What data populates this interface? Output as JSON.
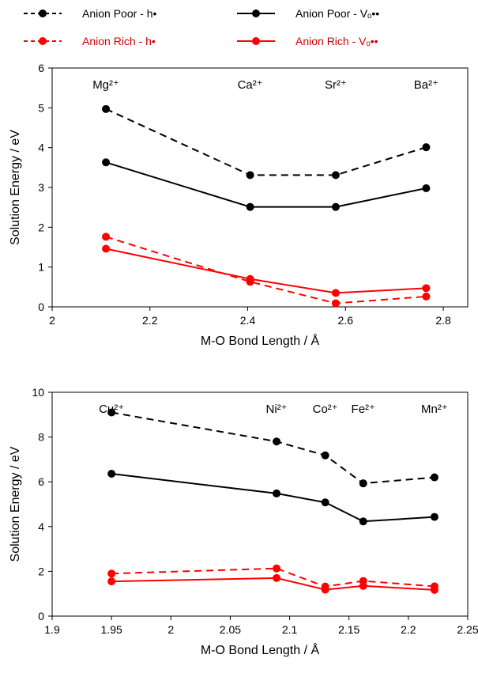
{
  "legend": {
    "items": [
      {
        "label": "Anion Poor - h•",
        "color": "#000000",
        "dashed": true
      },
      {
        "label": "Anion Poor - Vₒ••",
        "color": "#000000",
        "dashed": false
      },
      {
        "label": "Anion Rich - h•",
        "color": "#ff0000",
        "dashed": true
      },
      {
        "label": "Anion Rich - Vₒ••",
        "color": "#ff0000",
        "dashed": false
      }
    ]
  },
  "chart_data": [
    {
      "type": "line",
      "xlabel": "M-O Bond Length / Å",
      "ylabel": "Solution Energy / eV",
      "xlim": [
        2,
        2.85
      ],
      "ylim": [
        0,
        6
      ],
      "xticks": [
        "2",
        "2.2",
        "2.4",
        "2.6",
        "2.8"
      ],
      "yticks": [
        "0",
        "1",
        "2",
        "3",
        "4",
        "5",
        "6"
      ],
      "grid": false,
      "ion_labels": [
        {
          "text": "Mg²⁺",
          "x": 2.11
        },
        {
          "text": "Ca²⁺",
          "x": 2.405
        },
        {
          "text": "Sr²⁺",
          "x": 2.58
        },
        {
          "text": "Ba²⁺",
          "x": 2.765
        }
      ],
      "x": [
        2.11,
        2.405,
        2.58,
        2.765
      ],
      "series": [
        {
          "name": "Anion Poor - h•",
          "color": "#000000",
          "dashed": true,
          "values": [
            4.97,
            3.31,
            3.31,
            4.01
          ]
        },
        {
          "name": "Anion Poor - Vₒ••",
          "color": "#000000",
          "dashed": false,
          "values": [
            3.63,
            2.51,
            2.51,
            2.98
          ]
        },
        {
          "name": "Anion Rich - h•",
          "color": "#ff0000",
          "dashed": true,
          "values": [
            1.76,
            0.63,
            0.09,
            0.26
          ]
        },
        {
          "name": "Anion Rich - Vₒ••",
          "color": "#ff0000",
          "dashed": false,
          "values": [
            1.46,
            0.7,
            0.35,
            0.47
          ]
        }
      ]
    },
    {
      "type": "line",
      "xlabel": "M-O Bond Length / Å",
      "ylabel": "Solution Energy / eV",
      "xlim": [
        1.9,
        2.25
      ],
      "ylim": [
        0,
        10
      ],
      "xticks": [
        "1.9",
        "1.95",
        "2",
        "2.05",
        "2.1",
        "2.15",
        "2.2",
        "2.25"
      ],
      "yticks": [
        "0",
        "2",
        "4",
        "6",
        "8",
        "10"
      ],
      "grid": false,
      "ion_labels": [
        {
          "text": "Cu²⁺",
          "x": 1.95
        },
        {
          "text": "Ni²⁺",
          "x": 2.089
        },
        {
          "text": "Co²⁺",
          "x": 2.13
        },
        {
          "text": "Fe²⁺",
          "x": 2.162
        },
        {
          "text": "Mn²⁺",
          "x": 2.222
        }
      ],
      "x": [
        1.95,
        2.089,
        2.13,
        2.162,
        2.222
      ],
      "series": [
        {
          "name": "Anion Poor - h•",
          "color": "#000000",
          "dashed": true,
          "values": [
            9.1,
            7.8,
            7.18,
            5.93,
            6.2
          ]
        },
        {
          "name": "Anion Poor - Vₒ••",
          "color": "#000000",
          "dashed": false,
          "values": [
            6.36,
            5.48,
            5.08,
            4.23,
            4.43
          ]
        },
        {
          "name": "Anion Rich - h•",
          "color": "#ff0000",
          "dashed": true,
          "values": [
            1.9,
            2.13,
            1.32,
            1.57,
            1.33
          ]
        },
        {
          "name": "Anion Rich - Vₒ••",
          "color": "#ff0000",
          "dashed": false,
          "values": [
            1.55,
            1.7,
            1.18,
            1.35,
            1.17
          ]
        }
      ]
    }
  ]
}
